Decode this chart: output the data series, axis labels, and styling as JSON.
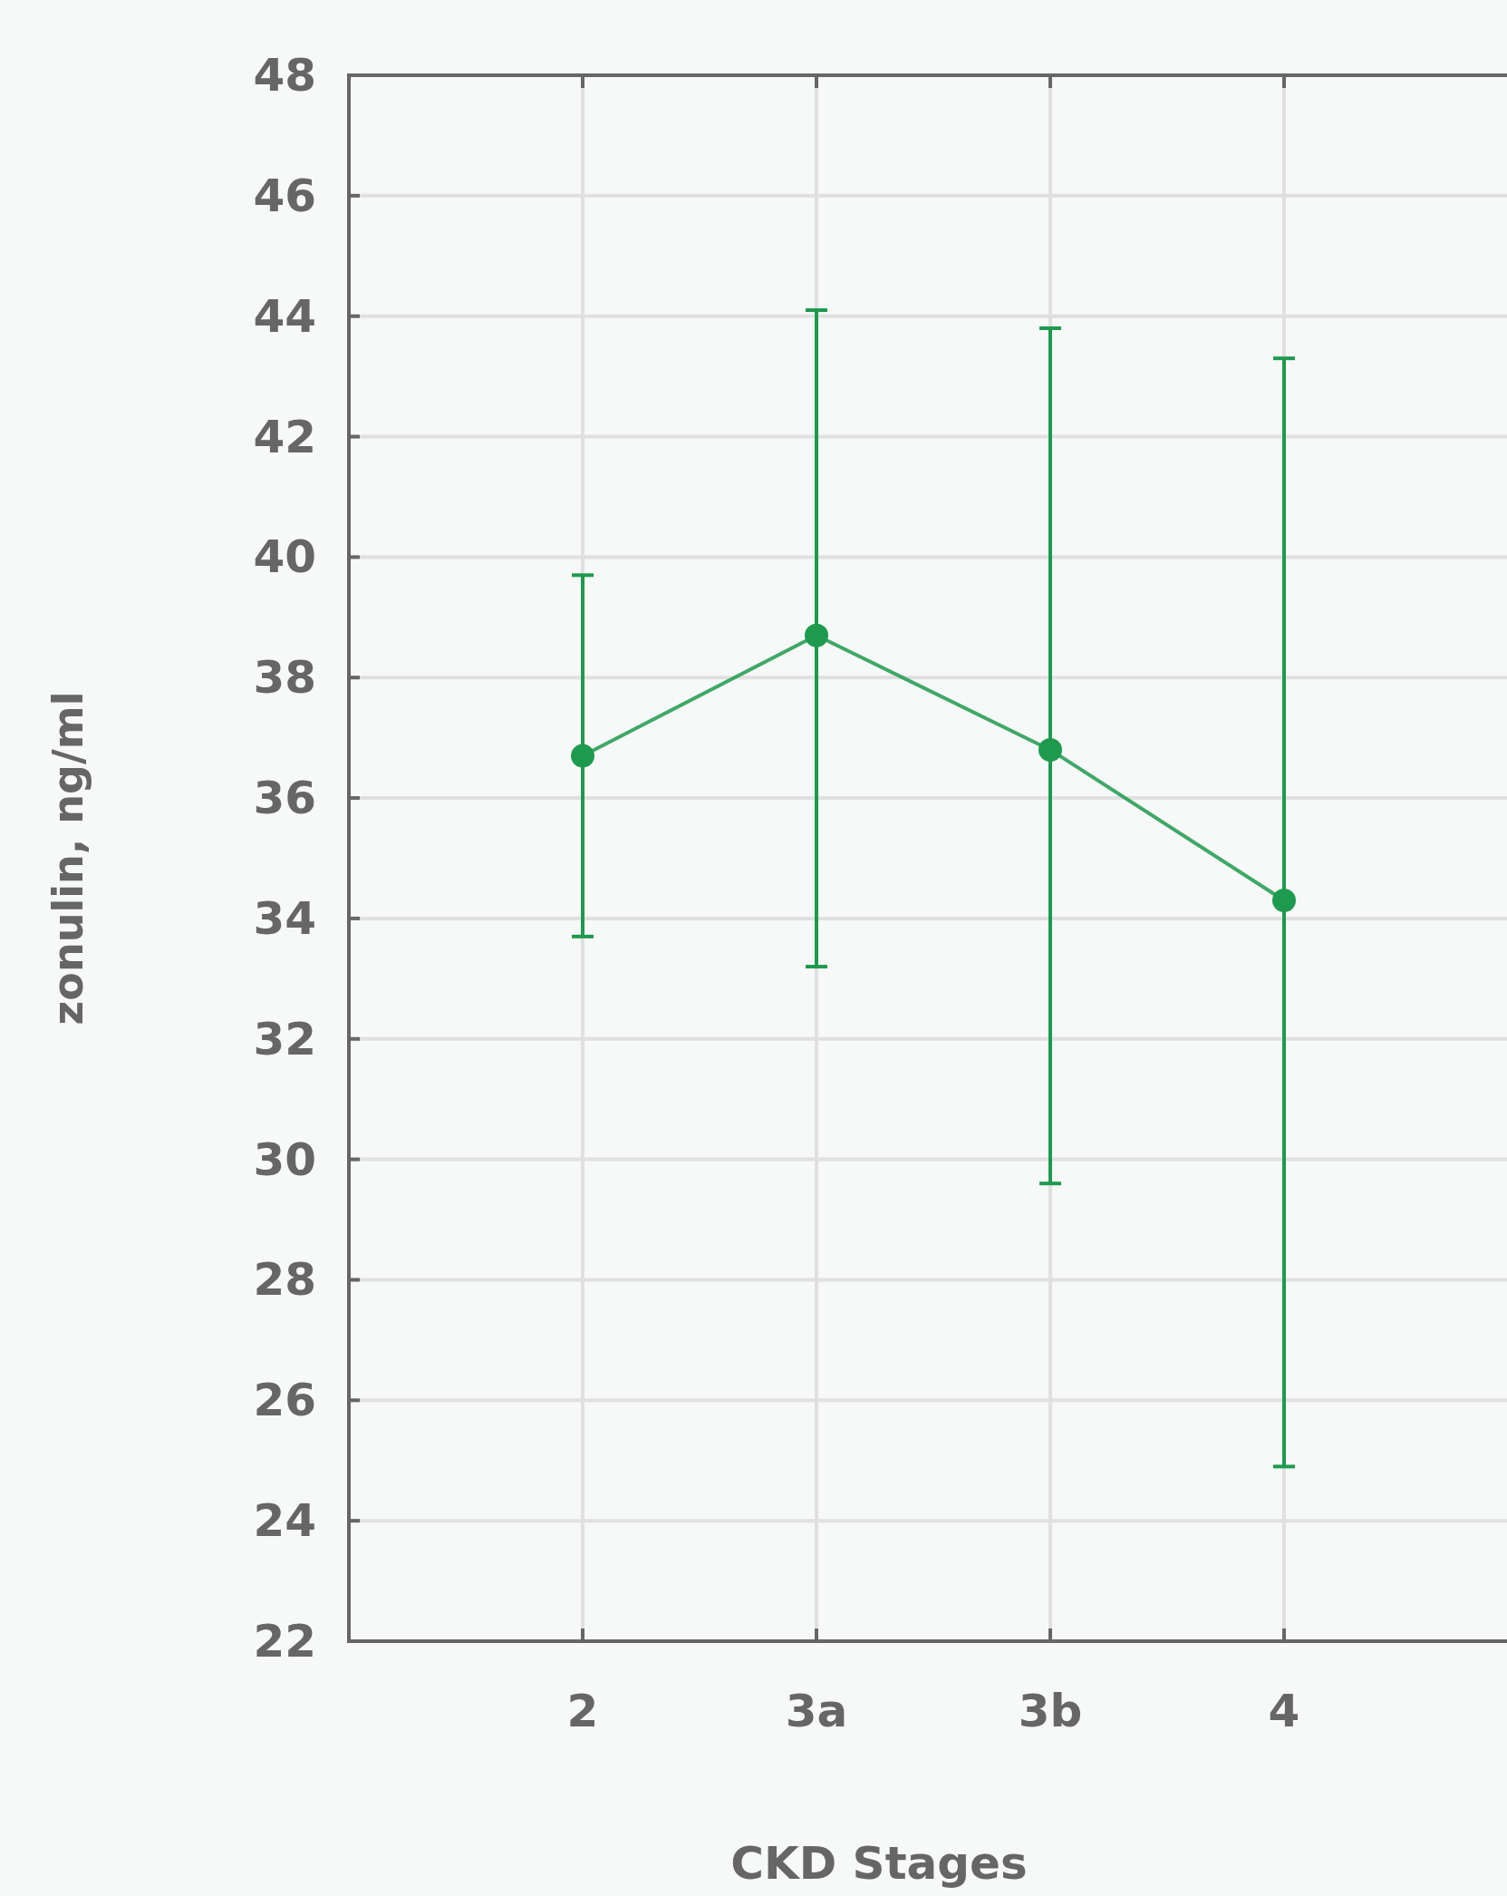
{
  "chart_data": {
    "type": "line",
    "xlabel": "CKD Stages",
    "ylabel": "zonulin, ng/ml",
    "categories": [
      "2",
      "3a",
      "3b",
      "4"
    ],
    "series": [
      {
        "color": "#1e9a4e",
        "values": [
          36.7,
          38.7,
          36.8,
          34.3
        ],
        "errors": [
          [
            33.7,
            39.7
          ],
          [
            33.2,
            44.1
          ],
          [
            29.6,
            43.8
          ],
          [
            24.9,
            43.3
          ]
        ]
      }
    ],
    "ylim": [
      22,
      48
    ],
    "yticks": [
      22,
      24,
      26,
      28,
      30,
      32,
      34,
      36,
      38,
      40,
      42,
      44,
      46,
      48
    ],
    "grid": true,
    "marker": "circle",
    "line_style": "solid"
  }
}
